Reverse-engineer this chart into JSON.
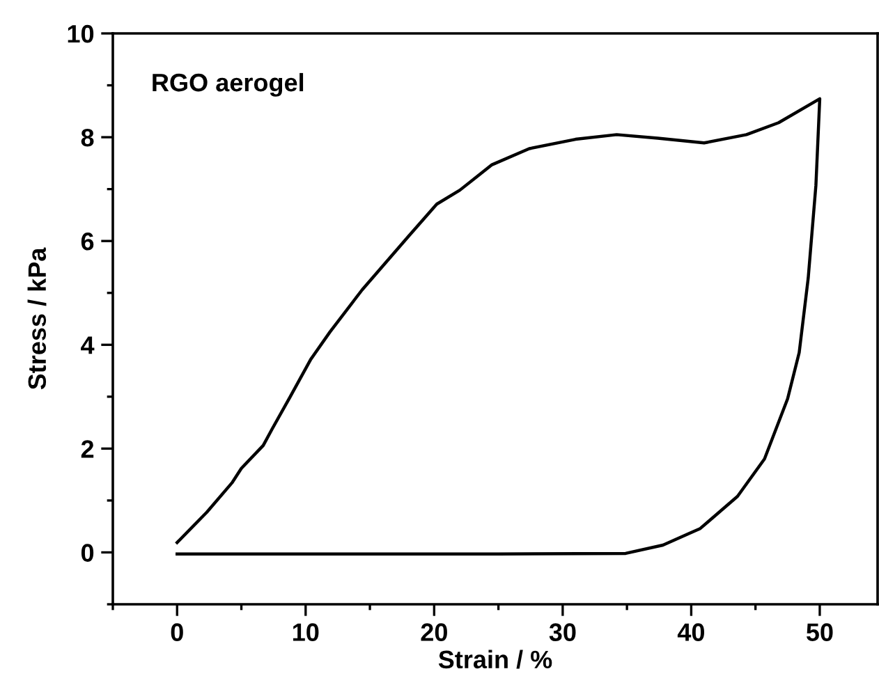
{
  "chart_data": {
    "type": "line",
    "xlabel": "Strain / %",
    "ylabel": "Stress / kPa",
    "annotations": [
      "RGO aerogel"
    ],
    "series": [
      {
        "color": "#000000",
        "x": [
          0,
          2.3,
          4.3,
          5.0,
          6.7,
          7.4,
          8.8,
          10.4,
          11.9,
          14.4,
          18.0,
          20.2,
          22.0,
          24.5,
          27.4,
          31.0,
          34.2,
          37.4,
          41.0,
          44.3,
          46.8,
          50.0,
          49.7,
          49.1,
          48.4,
          47.5,
          45.7,
          43.6,
          40.7,
          37.8,
          34.9,
          25,
          10,
          0
        ],
        "values": [
          0.19,
          0.77,
          1.35,
          1.62,
          2.06,
          2.38,
          3.0,
          3.72,
          4.25,
          5.06,
          6.09,
          6.71,
          6.98,
          7.47,
          7.78,
          7.96,
          8.05,
          7.98,
          7.89,
          8.05,
          8.28,
          8.74,
          7.07,
          5.28,
          3.85,
          2.96,
          1.8,
          1.08,
          0.46,
          0.14,
          -0.02,
          -0.03,
          -0.03,
          -0.03
        ]
      }
    ],
    "xlim": [
      -5,
      54.5
    ],
    "ylim": [
      -1,
      10
    ],
    "xticks": [
      0,
      10,
      20,
      30,
      40,
      50
    ],
    "yticks": [
      0,
      2,
      4,
      6,
      8,
      10
    ],
    "marker": "none",
    "line_style": "solid"
  }
}
